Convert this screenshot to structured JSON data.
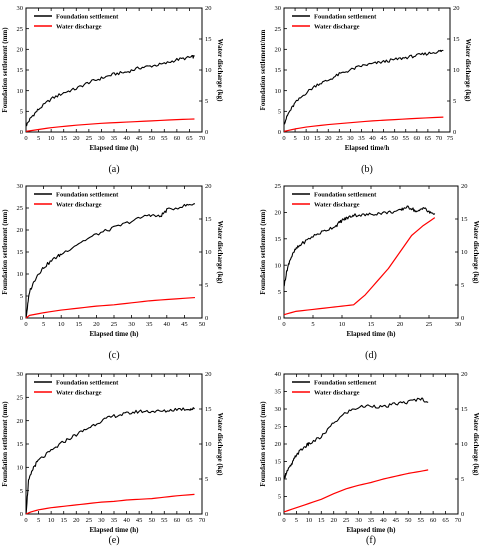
{
  "chart_data": [
    {
      "type": "line",
      "caption": "(a)",
      "xlabel": "Elapsed time (h)",
      "ylabel": "Foundation settlement (mm)",
      "y2label": "Water discharge (kg)",
      "xlim": [
        0,
        70
      ],
      "ylim": [
        0,
        30
      ],
      "y2lim": [
        0,
        20
      ],
      "xticks": [
        0,
        5,
        10,
        15,
        20,
        25,
        30,
        35,
        40,
        45,
        50,
        55,
        60,
        65,
        70
      ],
      "yticks": [
        0,
        5,
        10,
        15,
        20,
        25,
        30
      ],
      "y2ticks": [
        0,
        5,
        10,
        15,
        20
      ],
      "legend_position": "top-left",
      "series": [
        {
          "name": "Foundation settlement",
          "color": "#000000",
          "axis": "left",
          "x": [
            0,
            2,
            5,
            10,
            15,
            20,
            25,
            30,
            35,
            40,
            45,
            50,
            55,
            60,
            65,
            67
          ],
          "y": [
            1.5,
            3.5,
            5.5,
            8.0,
            9.5,
            10.5,
            12.0,
            13.0,
            14.0,
            14.5,
            15.5,
            16.0,
            16.5,
            17.5,
            18.0,
            18.3
          ]
        },
        {
          "name": "Water discharge",
          "color": "#ff0000",
          "axis": "right",
          "x": [
            0,
            5,
            10,
            20,
            30,
            40,
            50,
            60,
            67
          ],
          "y": [
            0.1,
            0.4,
            0.7,
            1.1,
            1.4,
            1.6,
            1.8,
            2.0,
            2.1
          ]
        }
      ]
    },
    {
      "type": "line",
      "caption": "(b)",
      "xlabel": "Elapsed time/h",
      "ylabel": "Foundation settlement/mm",
      "y2label": "Water discharge (kg)",
      "xlim": [
        0,
        75
      ],
      "ylim": [
        0,
        30
      ],
      "y2lim": [
        0,
        20
      ],
      "xticks": [
        0,
        5,
        10,
        15,
        20,
        25,
        30,
        35,
        40,
        45,
        50,
        55,
        60,
        65,
        70,
        75
      ],
      "yticks": [
        0,
        5,
        10,
        15,
        20,
        25,
        30
      ],
      "y2ticks": [
        0,
        5,
        10,
        15,
        20
      ],
      "legend_position": "top-left",
      "series": [
        {
          "name": "Foundation settlement",
          "color": "#000000",
          "axis": "left",
          "x": [
            0,
            2,
            5,
            10,
            15,
            20,
            25,
            30,
            35,
            40,
            45,
            50,
            55,
            60,
            65,
            70,
            72
          ],
          "y": [
            2.0,
            4.5,
            7.0,
            9.5,
            11.5,
            12.5,
            14.0,
            15.0,
            16.0,
            16.5,
            17.0,
            17.5,
            18.0,
            18.5,
            19.0,
            19.5,
            19.7
          ]
        },
        {
          "name": "Water discharge",
          "color": "#ff0000",
          "axis": "right",
          "x": [
            0,
            5,
            10,
            20,
            30,
            40,
            50,
            60,
            72
          ],
          "y": [
            0.1,
            0.5,
            0.8,
            1.2,
            1.5,
            1.8,
            2.0,
            2.2,
            2.4
          ]
        }
      ]
    },
    {
      "type": "line",
      "caption": "(c)",
      "xlabel": "Elapsed time (h)",
      "ylabel": "Foundation settlement (mm)",
      "y2label": "Water discharge (kg)",
      "xlim": [
        0,
        50
      ],
      "ylim": [
        0,
        30
      ],
      "y2lim": [
        0,
        20
      ],
      "xticks": [
        0,
        5,
        10,
        15,
        20,
        25,
        30,
        35,
        40,
        45,
        50
      ],
      "yticks": [
        0,
        5,
        10,
        15,
        20,
        25,
        30
      ],
      "y2ticks": [
        0,
        5,
        10,
        15,
        20
      ],
      "legend_position": "top-left",
      "series": [
        {
          "name": "Foundation settlement",
          "color": "#000000",
          "axis": "left",
          "x": [
            0,
            1,
            3,
            5,
            8,
            10,
            15,
            20,
            25,
            30,
            35,
            38,
            40,
            45,
            48
          ],
          "y": [
            0,
            6.0,
            9.5,
            11.5,
            13.5,
            14.5,
            17.0,
            19.0,
            20.5,
            22.0,
            23.5,
            23.0,
            24.5,
            25.5,
            26.0
          ]
        },
        {
          "name": "Water discharge",
          "color": "#ff0000",
          "axis": "right",
          "x": [
            0,
            1,
            5,
            10,
            15,
            20,
            25,
            30,
            35,
            40,
            48
          ],
          "y": [
            0,
            0.4,
            0.8,
            1.2,
            1.5,
            1.8,
            2.0,
            2.3,
            2.6,
            2.8,
            3.1
          ]
        }
      ]
    },
    {
      "type": "line",
      "caption": "(d)",
      "xlabel": "Elapsed time (h)",
      "ylabel": "Foundation settlement (mm)",
      "y2label": "Water discharge (kg)",
      "xlim": [
        0,
        30
      ],
      "ylim": [
        0,
        25
      ],
      "y2lim": [
        0,
        20
      ],
      "xticks": [
        0,
        5,
        10,
        15,
        20,
        25,
        30
      ],
      "yticks": [
        0,
        5,
        10,
        15,
        20,
        25
      ],
      "y2ticks": [
        0,
        5,
        10,
        15,
        20
      ],
      "legend_position": "top-left",
      "series": [
        {
          "name": "Foundation settlement",
          "color": "#000000",
          "axis": "left",
          "x": [
            0,
            0.5,
            1,
            2,
            3,
            5,
            7,
            9,
            10,
            11,
            12,
            14,
            16,
            18,
            20,
            21,
            22,
            23,
            24,
            25,
            26
          ],
          "y": [
            6.0,
            9.0,
            11.0,
            13.0,
            14.0,
            15.5,
            16.5,
            17.5,
            18.5,
            19.0,
            19.5,
            19.5,
            19.8,
            20.0,
            20.3,
            21.0,
            20.8,
            20.0,
            21.0,
            20.0,
            19.8
          ]
        },
        {
          "name": "Water discharge",
          "color": "#ff0000",
          "axis": "right",
          "x": [
            0,
            2,
            5,
            8,
            10,
            12,
            14,
            16,
            18,
            20,
            22,
            24,
            26
          ],
          "y": [
            0.5,
            1.0,
            1.3,
            1.6,
            1.8,
            2.0,
            3.5,
            5.5,
            7.5,
            10.0,
            12.5,
            14.0,
            15.2
          ]
        }
      ]
    },
    {
      "type": "line",
      "caption": "(e)",
      "xlabel": "Elapsed time (h)",
      "ylabel": "Foundation settlement (mm)",
      "y2label": "Water discharge (kg)",
      "xlim": [
        0,
        70
      ],
      "ylim": [
        0,
        30
      ],
      "y2lim": [
        0,
        20
      ],
      "xticks": [
        0,
        5,
        10,
        15,
        20,
        25,
        30,
        35,
        40,
        45,
        50,
        55,
        60,
        65,
        70
      ],
      "yticks": [
        0,
        5,
        10,
        15,
        20,
        25,
        30
      ],
      "y2ticks": [
        0,
        5,
        10,
        15,
        20
      ],
      "legend_position": "top-left",
      "series": [
        {
          "name": "Foundation settlement",
          "color": "#000000",
          "axis": "left",
          "x": [
            0,
            1,
            3,
            5,
            10,
            15,
            20,
            25,
            30,
            35,
            40,
            45,
            50,
            55,
            60,
            65,
            67
          ],
          "y": [
            0,
            7.0,
            10.0,
            11.5,
            13.5,
            15.5,
            17.0,
            18.5,
            20.0,
            21.0,
            21.5,
            22.0,
            22.0,
            22.0,
            22.5,
            22.5,
            22.5
          ]
        },
        {
          "name": "Water discharge",
          "color": "#ff0000",
          "axis": "right",
          "x": [
            0,
            2,
            5,
            10,
            15,
            20,
            25,
            30,
            35,
            40,
            45,
            50,
            55,
            60,
            67
          ],
          "y": [
            0,
            0.3,
            0.6,
            0.9,
            1.1,
            1.3,
            1.5,
            1.7,
            1.8,
            2.0,
            2.1,
            2.2,
            2.4,
            2.6,
            2.8
          ]
        }
      ]
    },
    {
      "type": "line",
      "caption": "(f)",
      "xlabel": "Elapsed time (h)",
      "ylabel": "Foundation settlement (mm)",
      "y2label": "Water discharge (kg)",
      "xlim": [
        0,
        70
      ],
      "ylim": [
        0,
        40
      ],
      "y2lim": [
        0,
        20
      ],
      "xticks": [
        0,
        5,
        10,
        15,
        20,
        25,
        30,
        35,
        40,
        45,
        50,
        55,
        60,
        65,
        70
      ],
      "yticks": [
        0,
        5,
        10,
        15,
        20,
        25,
        30,
        35,
        40
      ],
      "y2ticks": [
        0,
        5,
        10,
        15,
        20
      ],
      "legend_position": "top-left",
      "series": [
        {
          "name": "Foundation settlement",
          "color": "#000000",
          "axis": "left",
          "x": [
            0,
            1,
            3,
            5,
            8,
            10,
            15,
            20,
            25,
            30,
            35,
            40,
            45,
            50,
            55,
            58
          ],
          "y": [
            10.0,
            12.0,
            14.0,
            17.0,
            19.0,
            20.0,
            22.0,
            26.0,
            29.0,
            30.5,
            31.0,
            30.5,
            31.5,
            32.0,
            33.0,
            32.0
          ]
        },
        {
          "name": "Water discharge",
          "color": "#ff0000",
          "axis": "right",
          "x": [
            0,
            5,
            10,
            15,
            20,
            25,
            30,
            35,
            40,
            45,
            50,
            55,
            58
          ],
          "y": [
            0.3,
            0.9,
            1.5,
            2.1,
            2.9,
            3.6,
            4.1,
            4.5,
            5.0,
            5.4,
            5.8,
            6.1,
            6.3
          ]
        }
      ]
    }
  ]
}
